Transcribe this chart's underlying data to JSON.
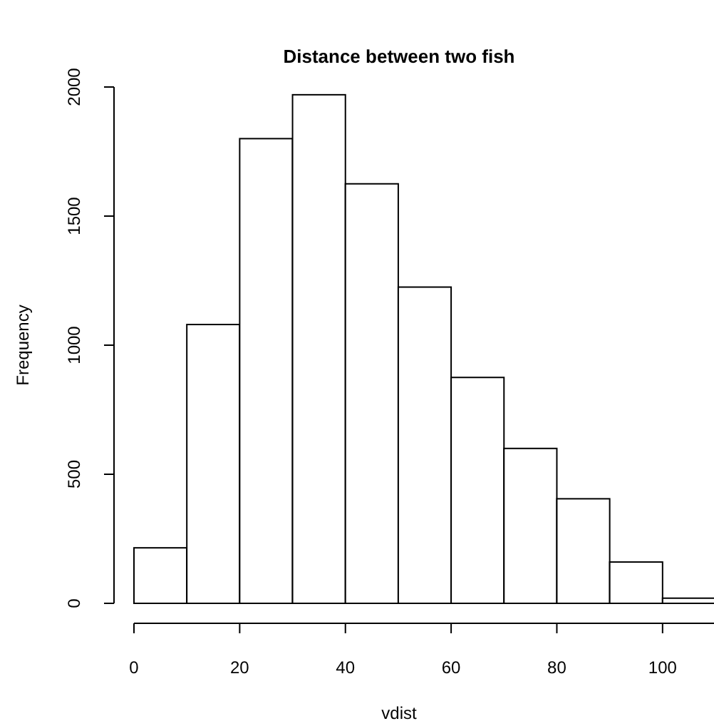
{
  "chart_data": {
    "type": "histogram",
    "title": "Distance between two fish",
    "xlabel": "vdist",
    "ylabel": "Frequency",
    "bins": [
      0,
      10,
      20,
      30,
      40,
      50,
      60,
      70,
      80,
      90,
      100,
      110
    ],
    "values": [
      215,
      1080,
      1800,
      1970,
      1625,
      1225,
      875,
      600,
      405,
      160,
      20
    ],
    "color": "#ffffff",
    "xlim": [
      0,
      110
    ],
    "xticks": [
      0,
      20,
      40,
      60,
      80,
      100
    ],
    "ylim": [
      0,
      2000
    ],
    "yticks": [
      0,
      500,
      1000,
      1500,
      2000
    ],
    "grid": false
  }
}
